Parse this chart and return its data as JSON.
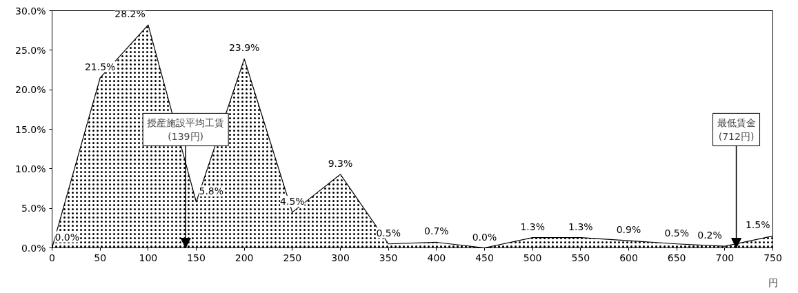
{
  "chart_data": {
    "type": "area",
    "xlabel": "円",
    "x": [
      0,
      50,
      100,
      150,
      200,
      250,
      300,
      350,
      400,
      450,
      500,
      550,
      600,
      650,
      700,
      750
    ],
    "series": [
      {
        "color": "#000000",
        "values": [
          0.0,
          21.5,
          28.2,
          5.8,
          23.9,
          4.5,
          9.3,
          0.5,
          0.7,
          0.0,
          1.3,
          1.3,
          0.9,
          0.5,
          0.2,
          1.5
        ],
        "value_labels": [
          "0.0%",
          "21.5%",
          "28.2%",
          "5.8%",
          "23.9%",
          "4.5%",
          "9.3%",
          "0.5%",
          "0.7%",
          "0.0%",
          "1.3%",
          "1.3%",
          "0.9%",
          "0.5%",
          "0.2%",
          "1.5%"
        ]
      }
    ],
    "xlim": [
      0,
      750
    ],
    "xticks": [
      0,
      50,
      100,
      150,
      200,
      250,
      300,
      350,
      400,
      450,
      500,
      550,
      600,
      650,
      700,
      750
    ],
    "ylim": [
      0,
      30
    ],
    "yticks": [
      {
        "value": 0,
        "label": "0.0%"
      },
      {
        "value": 5,
        "label": "5.0%"
      },
      {
        "value": 10,
        "label": "10.0%"
      },
      {
        "value": 15,
        "label": "15.0%"
      },
      {
        "value": 20,
        "label": "20.0%"
      },
      {
        "value": 25,
        "label": "25.0%"
      },
      {
        "value": 30,
        "label": "30.0%"
      }
    ],
    "annotations": [
      {
        "text": "授産施設平均工賃\n(139円)",
        "x": 139,
        "y": 0
      },
      {
        "text": "最低賃金\n(712円)",
        "x": 712,
        "y": 0
      }
    ],
    "grid": false
  }
}
